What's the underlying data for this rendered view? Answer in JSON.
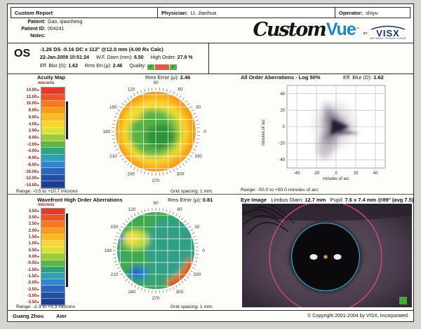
{
  "header": {
    "report_title": "Custom Report",
    "physician_label": "Physician:",
    "physician": "LI, Jianhua",
    "operator_label": "Operator:",
    "operator": "shiyu",
    "patient_label": "Patient:",
    "patient": "Gao, qiaocheng",
    "patient_id_label": "Patient ID:",
    "patient_id": "004241",
    "notes_label": "Notes:",
    "notes": ""
  },
  "logo": {
    "custom": "Custom",
    "vue": "Vue",
    "tm": "™",
    "by": "BY",
    "visx": "VISX",
    "tagline": "WE MAKE THINGS CLEAR",
    "vue_color": "#1e86c0",
    "visx_color": "#1b2f6e"
  },
  "os": {
    "eye": "OS",
    "rx_line": "-1.26 DS -0.16 DC x 112° @12.0 mm (4.00 Rx Calc)",
    "datetime": "22-Jan-2009 10:51:24",
    "wf_diam_label": "W.F. Diam (mm):",
    "wf_diam": "6.50",
    "high_order_label": "High Order:",
    "high_order": "27.9 %",
    "eff_blur_label": "Eff. Blur (D):",
    "eff_blur": "1.62",
    "rms_err_label": "Rms Err.(μ):",
    "rms_err": "2.46",
    "quality_label": "Quality:",
    "quality": [
      {
        "color": "#58b04a",
        "mark": "✓"
      },
      {
        "color": "#e2574b",
        "mark": ""
      },
      {
        "color": "#58b04a",
        "mark": "✓"
      }
    ]
  },
  "acuity": {
    "title": "Acuity Map",
    "rms_label": "Rms Error (μ):",
    "rms_value": "2.46",
    "units": "microns",
    "label_arrow": "▸",
    "range_text": "Range: -0.5 to +10.7 microns",
    "grid_text": "Grid spacing: 1 mm.",
    "scale": {
      "labels": [
        "14.00",
        "12.00",
        "10.00",
        "8.00",
        "6.00",
        "4.00",
        "2.00",
        "0.00",
        "-2.00",
        "-4.00",
        "-6.00",
        "-8.00",
        "-10.00",
        "-12.00",
        "-14.00"
      ],
      "colors": [
        "#e23b2a",
        "#ee5526",
        "#f37a20",
        "#f89c1b",
        "#fbbb20",
        "#f8d82e",
        "#d8e03a",
        "#9ccb3b",
        "#5cb545",
        "#2fa47c",
        "#2f9fb5",
        "#3485cc",
        "#2b66bb",
        "#2450a3",
        "#1a3d8f"
      ],
      "max": 15,
      "min": -15,
      "range_max": 10.7,
      "range_min": -0.5
    },
    "angle_labels": [
      "0",
      "30",
      "60",
      "90",
      "120",
      "150",
      "180",
      "210",
      "240",
      "270",
      "300",
      "330"
    ]
  },
  "highorder": {
    "title": "Wavefront High Order Aberrations",
    "rms_label": "Rms Error (μ):",
    "rms_value": "0.81",
    "units": "microns",
    "range_text": "Range: -2.3 to +3.3 microns",
    "grid_text": "Grid spacing: 1 mm.",
    "scale": {
      "labels": [
        "3.50",
        "3.00",
        "2.50",
        "2.00",
        "1.50",
        "1.00",
        "0.50",
        "0.00",
        "-0.50",
        "-1.00",
        "-1.50",
        "-2.00",
        "-2.50",
        "-3.00",
        "-3.50"
      ],
      "colors": [
        "#e23b2a",
        "#ee5526",
        "#f37a20",
        "#f89c1b",
        "#fbbb20",
        "#f8d82e",
        "#d8e03a",
        "#9ccb3b",
        "#5cb545",
        "#2fa47c",
        "#2f9fb5",
        "#3485cc",
        "#2b66bb",
        "#2450a3",
        "#1a3d8f"
      ],
      "max": 3.75,
      "min": -3.75,
      "range_max": 3.3,
      "range_min": -2.3
    },
    "angle_labels": [
      "0",
      "30",
      "60",
      "90",
      "120",
      "150",
      "180",
      "210",
      "240",
      "270",
      "300",
      "330"
    ]
  },
  "psf": {
    "title": "All Order Aberrations - Log 50%",
    "eff_blur_label": "Eff. Blur (D):",
    "eff_blur": "1.62",
    "ticks": [
      "-40",
      "-20",
      "0",
      "20",
      "40"
    ],
    "axis_label": "minutes of arc",
    "range_text": "Range: -50.0 to +50.0 minutes of arc"
  },
  "eye": {
    "title": "Eye Image",
    "limbus_label": "Limbus Diam:",
    "limbus_value": "12.7 mm",
    "pupil_label": "Pupil:",
    "pupil_value": "7.6 x 7.4 mm @89° (avg 7.5)"
  },
  "footer": {
    "site1": "Guang Zhou",
    "site2": "Aier",
    "copyright": "© Copyright 2001-2004 by VISX, Incorporated."
  },
  "chart_data": [
    {
      "type": "heatmap",
      "title": "Acuity Map",
      "units": "microns",
      "value_range": [
        -0.5,
        10.7
      ],
      "colorbar_ticks": [
        14,
        12,
        10,
        8,
        6,
        4,
        2,
        0,
        -2,
        -4,
        -6,
        -8,
        -10,
        -12,
        -14
      ],
      "angle_ticks_deg": [
        0,
        30,
        60,
        90,
        120,
        150,
        180,
        210,
        240,
        270,
        300,
        330
      ],
      "grid_spacing": "1 mm",
      "rms_error_u": 2.46,
      "legend_position": "left"
    },
    {
      "type": "heatmap",
      "title": "All Order Aberrations - Log 50%",
      "xlabel": "minutes of arc",
      "ylabel": "minutes of arc",
      "x_range": [
        -50,
        50
      ],
      "y_range": [
        -50,
        50
      ],
      "ticks": [
        -40,
        -20,
        0,
        20,
        40
      ],
      "eff_blur_d": 1.62,
      "grid": true
    },
    {
      "type": "heatmap",
      "title": "Wavefront High Order Aberrations",
      "units": "microns",
      "value_range": [
        -2.3,
        3.3
      ],
      "colorbar_ticks": [
        3.5,
        3,
        2.5,
        2,
        1.5,
        1,
        0.5,
        0,
        -0.5,
        -1,
        -1.5,
        -2,
        -2.5,
        -3,
        -3.5
      ],
      "angle_ticks_deg": [
        0,
        30,
        60,
        90,
        120,
        150,
        180,
        210,
        240,
        270,
        300,
        330
      ],
      "grid_spacing": "1 mm",
      "rms_error_u": 0.81,
      "legend_position": "left"
    }
  ]
}
